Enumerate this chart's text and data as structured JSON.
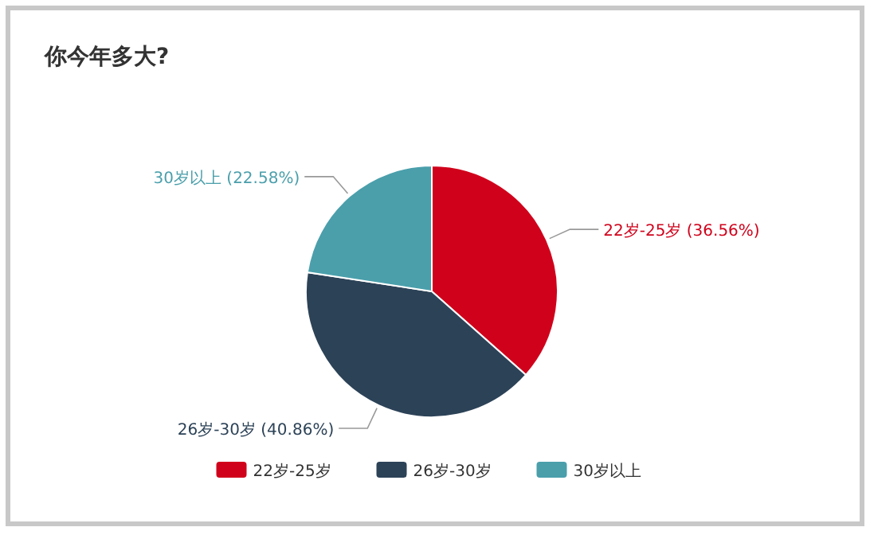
{
  "chart_data": {
    "type": "pie",
    "title": "你今年多大?",
    "categories": [
      "22岁-25岁",
      "26岁-30岁",
      "30岁以上"
    ],
    "values": [
      36.56,
      40.86,
      22.58
    ],
    "colors": [
      "#d0021b",
      "#2c4257",
      "#4a9fab"
    ],
    "value_labels": [
      "22岁-25岁 (36.56%)",
      "26岁-30岁 (40.86%)",
      "30岁以上 (22.58%)"
    ],
    "legend": "bottom"
  }
}
